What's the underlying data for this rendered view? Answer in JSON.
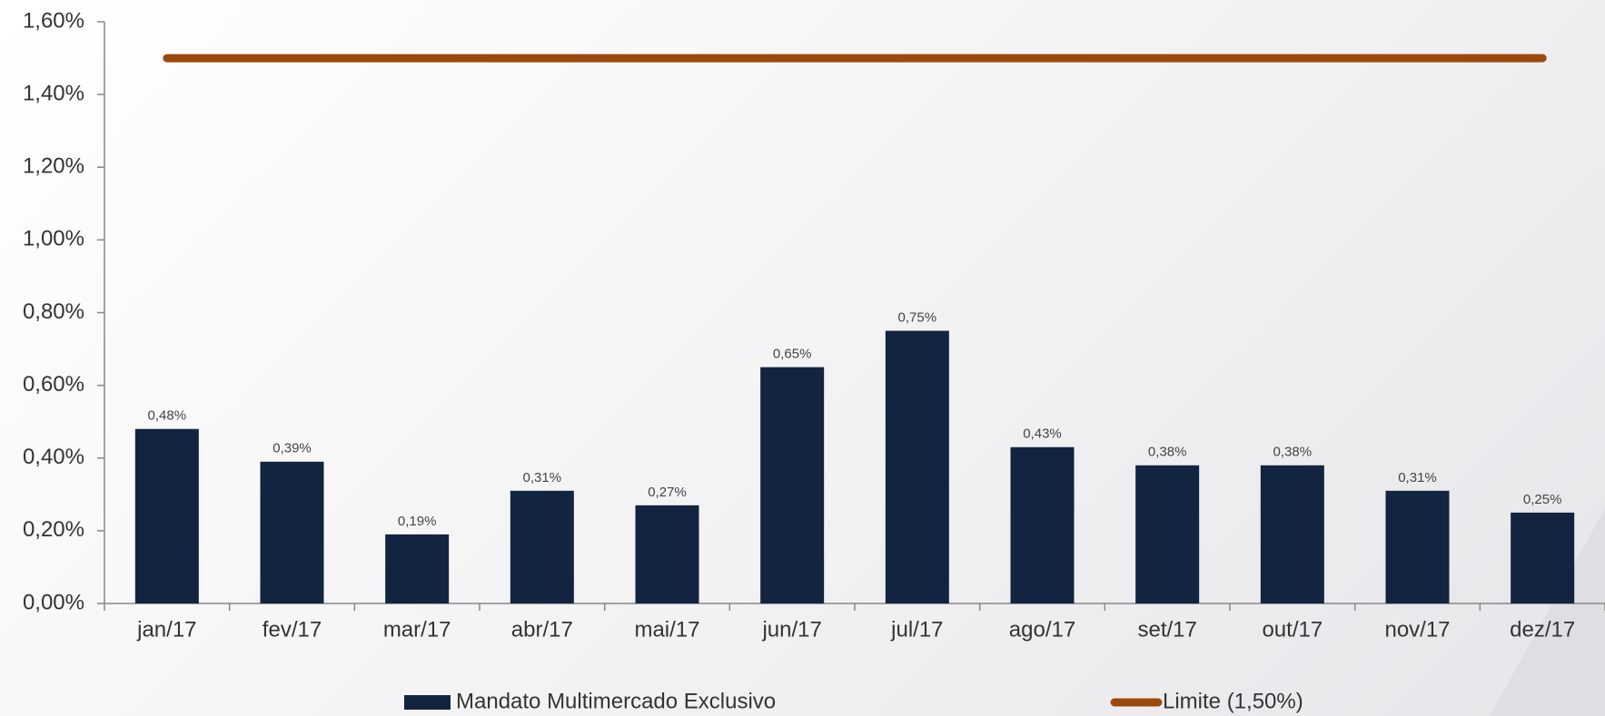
{
  "chart_data": {
    "type": "bar",
    "categories": [
      "jan/17",
      "fev/17",
      "mar/17",
      "abr/17",
      "mai/17",
      "jun/17",
      "jul/17",
      "ago/17",
      "set/17",
      "out/17",
      "nov/17",
      "dez/17"
    ],
    "series": [
      {
        "name": "Mandato Multimercado Exclusivo",
        "type": "bar",
        "color": "#12243f",
        "values": [
          0.48,
          0.39,
          0.19,
          0.31,
          0.27,
          0.65,
          0.75,
          0.43,
          0.38,
          0.38,
          0.31,
          0.25
        ],
        "value_labels": [
          "0,48%",
          "0,39%",
          "0,19%",
          "0,31%",
          "0,27%",
          "0,65%",
          "0,75%",
          "0,43%",
          "0,38%",
          "0,38%",
          "0,31%",
          "0,25%"
        ]
      },
      {
        "name": "Limite (1,50%)",
        "type": "line",
        "color": "#9c4a0c",
        "values": [
          1.5,
          1.5,
          1.5,
          1.5,
          1.5,
          1.5,
          1.5,
          1.5,
          1.5,
          1.5,
          1.5,
          1.5
        ]
      }
    ],
    "ylim": [
      0,
      1.6
    ],
    "yticks": [
      {
        "value": 0,
        "label": "0,00%"
      },
      {
        "value": 0.2,
        "label": "0,20%"
      },
      {
        "value": 0.4,
        "label": "0,40%"
      },
      {
        "value": 0.6,
        "label": "0,60%"
      },
      {
        "value": 0.8,
        "label": "0,80%"
      },
      {
        "value": 1.0,
        "label": "1,00%"
      },
      {
        "value": 1.2,
        "label": "1,20%"
      },
      {
        "value": 1.4,
        "label": "1,40%"
      },
      {
        "value": 1.6,
        "label": "1,60%"
      }
    ]
  }
}
